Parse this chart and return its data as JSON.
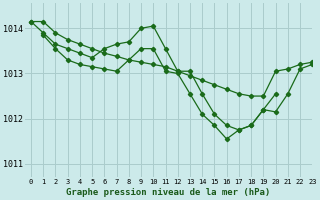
{
  "title": "Graphe pression niveau de la mer (hPa)",
  "background_color": "#cceaea",
  "grid_color": "#aacccc",
  "line_color": "#1a6b1a",
  "xlim": [
    -0.5,
    23
  ],
  "ylim": [
    1010.7,
    1014.55
  ],
  "yticks": [
    1011,
    1012,
    1013,
    1014
  ],
  "xlabel_color": "#1a5a1a",
  "series": [
    {
      "x": [
        0,
        1,
        2,
        3,
        4,
        5,
        6,
        7,
        8,
        9,
        10,
        11,
        12,
        13,
        14,
        15,
        16,
        17,
        18,
        19,
        20,
        21,
        22,
        23
      ],
      "y": [
        1014.15,
        1014.15,
        1013.9,
        1013.75,
        1013.65,
        1013.55,
        1013.45,
        1013.38,
        1013.3,
        1013.25,
        1013.2,
        1013.15,
        1013.05,
        1012.95,
        1012.85,
        1012.75,
        1012.65,
        1012.55,
        1012.5,
        1012.5,
        1013.05,
        1013.1,
        1013.2,
        1013.25
      ]
    },
    {
      "x": [
        0,
        1,
        2,
        3,
        4,
        5,
        6,
        7,
        8,
        9,
        10,
        11,
        12,
        13,
        14,
        15,
        16,
        17,
        18,
        19,
        20
      ],
      "y": [
        1014.15,
        1013.9,
        1013.65,
        1013.55,
        1013.45,
        1013.35,
        1013.55,
        1013.65,
        1013.7,
        1014.0,
        1014.05,
        1013.55,
        1013.05,
        1013.05,
        1012.55,
        1012.1,
        1011.85,
        1011.75,
        1011.85,
        1012.2,
        1012.55
      ]
    },
    {
      "x": [
        1,
        2,
        3,
        4,
        5,
        6,
        7,
        8,
        9,
        10,
        11,
        12,
        13,
        14,
        15,
        16,
        17,
        18,
        19,
        20,
        21,
        22,
        23
      ],
      "y": [
        1013.85,
        1013.55,
        1013.3,
        1013.2,
        1013.15,
        1013.1,
        1013.05,
        1013.3,
        1013.55,
        1013.55,
        1013.05,
        1013.0,
        1012.55,
        1012.1,
        1011.85,
        1011.55,
        1011.75,
        1011.85,
        1012.2,
        1012.15,
        1012.55,
        1013.1,
        1013.2
      ]
    }
  ]
}
